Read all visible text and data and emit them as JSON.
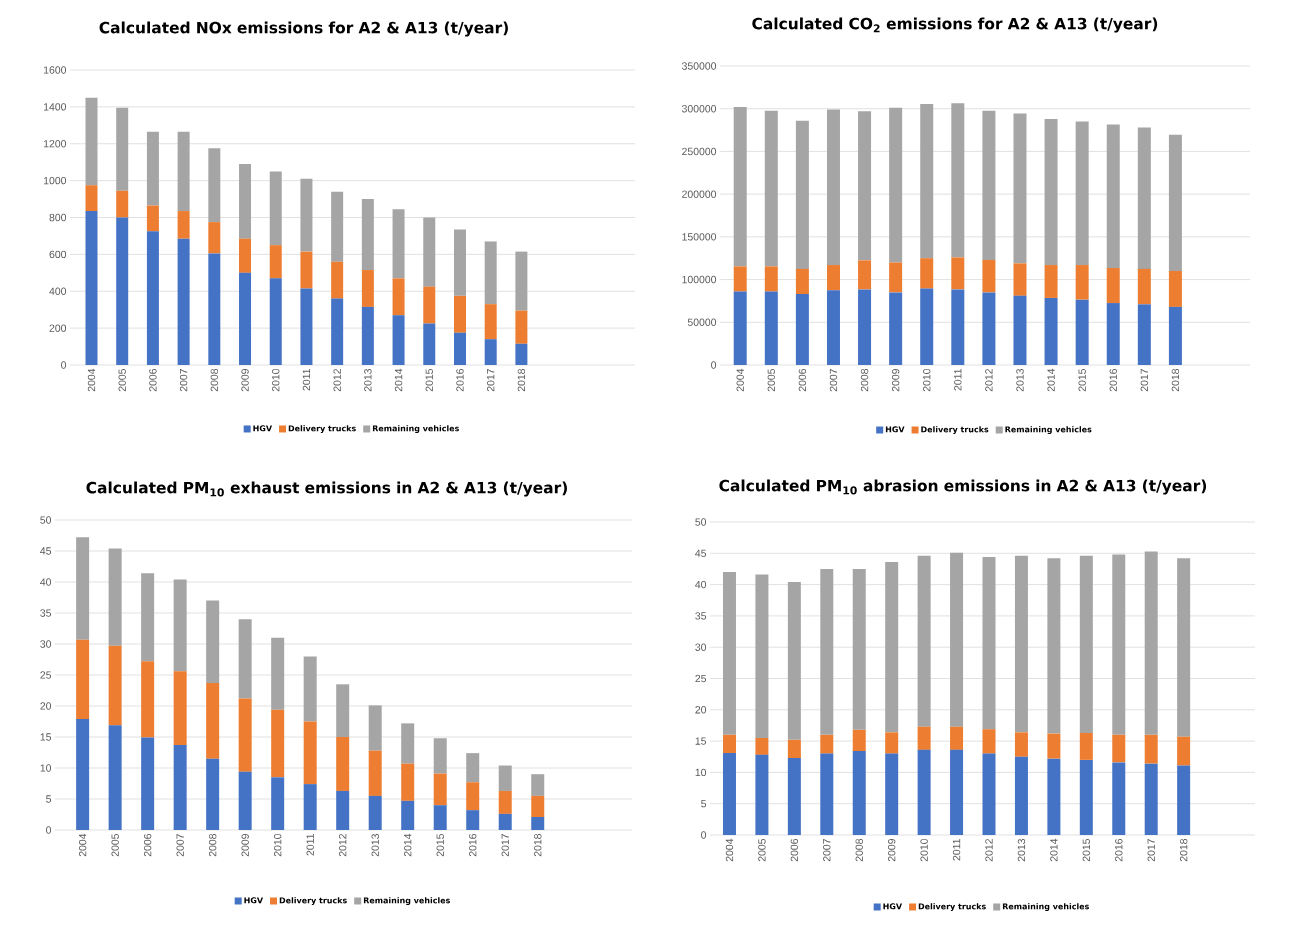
{
  "chart_data": [
    {
      "type": "bar",
      "stacked": true,
      "title": "Calculated NOx emissions for A2 & A13 (t/year)",
      "categories": [
        "2004",
        "2005",
        "2006",
        "2007",
        "2008",
        "2009",
        "2010",
        "2011",
        "2012",
        "2013",
        "2014",
        "2015",
        "2016",
        "2017",
        "2018"
      ],
      "ylim": [
        0,
        1600
      ],
      "yticks": [
        0,
        200,
        400,
        600,
        800,
        1000,
        1200,
        1400,
        1600
      ],
      "grid": "y",
      "legend": "bottom",
      "series": [
        {
          "name": "HGV",
          "color": "#4472c4",
          "values": [
            835,
            800,
            725,
            685,
            605,
            500,
            470,
            415,
            360,
            315,
            270,
            225,
            175,
            140,
            115
          ]
        },
        {
          "name": "Delivery trucks",
          "color": "#ed7d31",
          "values": [
            140,
            145,
            140,
            150,
            170,
            185,
            180,
            200,
            200,
            200,
            200,
            200,
            200,
            190,
            180
          ]
        },
        {
          "name": "Remaining vehicles",
          "color": "#a5a5a5",
          "values": [
            475,
            450,
            400,
            430,
            400,
            405,
            400,
            395,
            380,
            385,
            375,
            375,
            360,
            340,
            320
          ]
        }
      ]
    },
    {
      "type": "bar",
      "stacked": true,
      "title": "Calculated CO$_{2}$ emissions for A2 & A13 (t/year)",
      "categories": [
        "2004",
        "2005",
        "2006",
        "2007",
        "2008",
        "2009",
        "2010",
        "2011",
        "2012",
        "2013",
        "2014",
        "2015",
        "2016",
        "2017",
        "2018"
      ],
      "ylim": [
        0,
        350000
      ],
      "yticks": [
        0,
        50000,
        100000,
        150000,
        200000,
        250000,
        300000,
        350000
      ],
      "grid": "y",
      "legend": "bottom",
      "series": [
        {
          "name": "HGV",
          "color": "#4472c4",
          "values": [
            86000,
            86000,
            83000,
            87500,
            88500,
            85000,
            89500,
            88500,
            85000,
            81000,
            78500,
            76500,
            72500,
            71000,
            68000
          ]
        },
        {
          "name": "Delivery trucks",
          "color": "#ed7d31",
          "values": [
            29500,
            29500,
            29500,
            29500,
            34000,
            35000,
            35500,
            37500,
            38000,
            38000,
            38500,
            40500,
            41000,
            41500,
            42000
          ]
        },
        {
          "name": "Remaining vehicles",
          "color": "#a5a5a5",
          "values": [
            186500,
            182000,
            173500,
            182000,
            174500,
            181000,
            180500,
            180500,
            174500,
            175500,
            171000,
            168000,
            168000,
            165500,
            159500
          ]
        }
      ]
    },
    {
      "type": "bar",
      "stacked": true,
      "title": "Calculated PM$_{10}$ exhaust emissions in A2 & A13 (t/year)",
      "categories": [
        "2004",
        "2005",
        "2006",
        "2007",
        "2008",
        "2009",
        "2010",
        "2011",
        "2012",
        "2013",
        "2014",
        "2015",
        "2016",
        "2017",
        "2018"
      ],
      "ylim": [
        0,
        50
      ],
      "yticks": [
        0,
        5,
        10,
        15,
        20,
        25,
        30,
        35,
        40,
        45,
        50
      ],
      "grid": "y",
      "legend": "bottom",
      "series": [
        {
          "name": "HGV",
          "color": "#4472c4",
          "values": [
            17.9,
            16.9,
            14.9,
            13.7,
            11.5,
            9.4,
            8.5,
            7.4,
            6.3,
            5.5,
            4.7,
            4.0,
            3.2,
            2.6,
            2.1
          ]
        },
        {
          "name": "Delivery trucks",
          "color": "#ed7d31",
          "values": [
            12.8,
            12.8,
            12.3,
            11.9,
            12.2,
            11.8,
            10.9,
            10.1,
            8.7,
            7.3,
            6.0,
            5.1,
            4.5,
            3.7,
            3.4
          ]
        },
        {
          "name": "Remaining vehicles",
          "color": "#a5a5a5",
          "values": [
            16.5,
            15.7,
            14.2,
            14.8,
            13.3,
            12.8,
            11.6,
            10.5,
            8.5,
            7.3,
            6.5,
            5.7,
            4.7,
            4.1,
            3.5
          ]
        }
      ]
    },
    {
      "type": "bar",
      "stacked": true,
      "title": "Calculated PM$_{10}$ abrasion emissions in A2 & A13 (t/year)",
      "categories": [
        "2004",
        "2005",
        "2006",
        "2007",
        "2008",
        "2009",
        "2010",
        "2011",
        "2012",
        "2013",
        "2014",
        "2015",
        "2016",
        "2017",
        "2018"
      ],
      "ylim": [
        0,
        50
      ],
      "yticks": [
        0,
        5,
        10,
        15,
        20,
        25,
        30,
        35,
        40,
        45,
        50
      ],
      "grid": "y",
      "legend": "bottom",
      "series": [
        {
          "name": "HGV",
          "color": "#4472c4",
          "values": [
            13.1,
            12.8,
            12.3,
            13.0,
            13.4,
            13.0,
            13.6,
            13.6,
            13.0,
            12.5,
            12.2,
            12.0,
            11.6,
            11.4,
            11.1
          ]
        },
        {
          "name": "Delivery trucks",
          "color": "#ed7d31",
          "values": [
            2.9,
            2.7,
            2.9,
            3.0,
            3.4,
            3.4,
            3.7,
            3.7,
            3.9,
            3.9,
            4.0,
            4.3,
            4.4,
            4.6,
            4.6
          ]
        },
        {
          "name": "Remaining vehicles",
          "color": "#a5a5a5",
          "values": [
            26.0,
            26.1,
            25.2,
            26.5,
            25.7,
            27.2,
            27.3,
            27.8,
            27.5,
            28.2,
            28.0,
            28.3,
            28.8,
            29.3,
            28.5
          ]
        }
      ]
    }
  ]
}
